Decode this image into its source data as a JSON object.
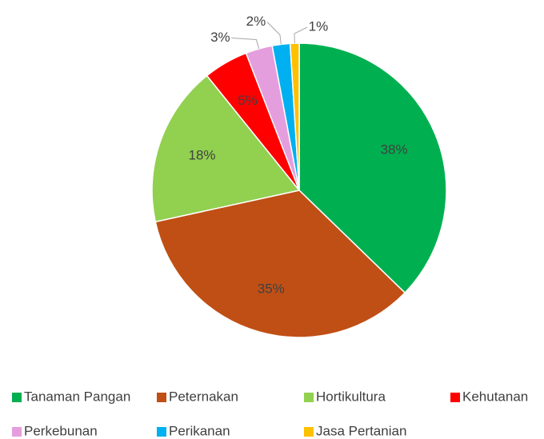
{
  "chart_data": {
    "type": "pie",
    "categories": [
      "Tanaman Pangan",
      "Peternakan",
      "Hortikultura",
      "Kehutanan",
      "Perkebunan",
      "Perikanan",
      "Jasa Pertanian"
    ],
    "values": [
      38,
      35,
      18,
      5,
      3,
      2,
      1
    ],
    "value_labels": [
      "38%",
      "35%",
      "18%",
      "5%",
      "3%",
      "2%",
      "1%"
    ],
    "colors": [
      "#00b050",
      "#c04f15",
      "#92d050",
      "#ff0000",
      "#e59edd",
      "#00b0f0",
      "#ffc000"
    ]
  }
}
